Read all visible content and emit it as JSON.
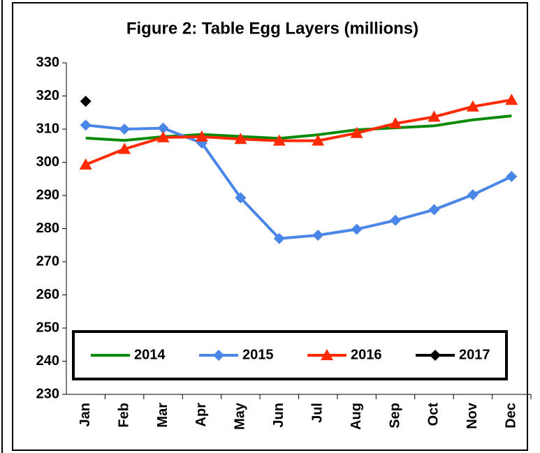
{
  "chart_data": {
    "type": "line",
    "title": "Figure 2: Table Egg Layers (millions)",
    "categories": [
      "Jan",
      "Feb",
      "Mar",
      "Apr",
      "May",
      "Jun",
      "Jul",
      "Aug",
      "Sep",
      "Oct",
      "Nov",
      "Dec"
    ],
    "series": [
      {
        "name": "2014",
        "color": "#0a8a0a",
        "marker": "none",
        "values": [
          307.3,
          306.6,
          307.7,
          308.4,
          307.8,
          307.2,
          308.3,
          309.8,
          310.4,
          311.0,
          312.8,
          314.0
        ]
      },
      {
        "name": "2015",
        "color": "#4a86e8",
        "marker": "diamond",
        "values": [
          311.2,
          310.0,
          310.3,
          305.8,
          289.3,
          277.0,
          278.0,
          279.8,
          282.5,
          285.7,
          290.2,
          295.7
        ]
      },
      {
        "name": "2016",
        "color": "#ff2a00",
        "marker": "triangle",
        "values": [
          299.3,
          304.0,
          307.5,
          307.7,
          307.0,
          306.5,
          306.5,
          308.8,
          311.7,
          313.7,
          316.8,
          318.8
        ]
      },
      {
        "name": "2017",
        "color": "#000000",
        "marker": "diamond",
        "values": [
          318.4,
          null,
          null,
          null,
          null,
          null,
          null,
          null,
          null,
          null,
          null,
          null
        ]
      }
    ],
    "ylim": [
      230,
      330
    ],
    "yticks": [
      230,
      240,
      250,
      260,
      270,
      280,
      290,
      300,
      310,
      320,
      330
    ],
    "grid": false,
    "legend_position": "bottom"
  }
}
